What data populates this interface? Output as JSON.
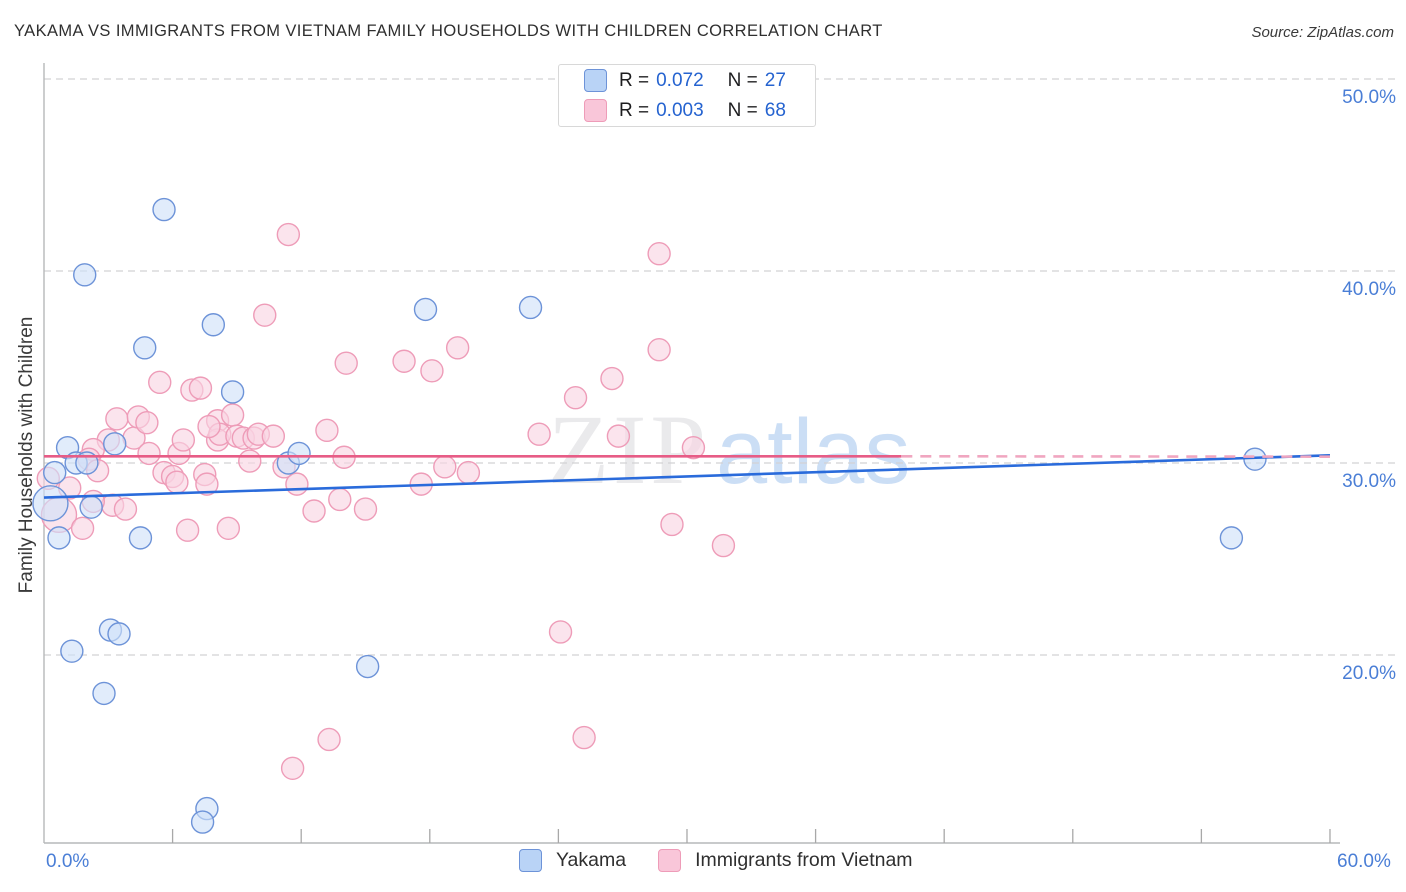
{
  "header": {
    "title": "YAKAMA VS IMMIGRANTS FROM VIETNAM FAMILY HOUSEHOLDS WITH CHILDREN CORRELATION CHART",
    "source": "Source: ZipAtlas.com"
  },
  "legend_box": {
    "rows": [
      {
        "series": "Yakama",
        "r_label": "R =",
        "r_value": "0.072",
        "n_label": "N =",
        "n_value": "27"
      },
      {
        "series": "Immigrants from Vietnam",
        "r_label": "R =",
        "r_value": "0.003",
        "n_label": "N =",
        "n_value": "68"
      }
    ]
  },
  "watermark": {
    "zip": "ZIP",
    "atlas": "atlas"
  },
  "axes": {
    "y_title": "Family Households with Children",
    "y_tick_labels": [
      "50.0%",
      "40.0%",
      "30.0%",
      "20.0%"
    ],
    "x_min_label": "0.0%",
    "x_max_label": "60.0%"
  },
  "bottom_legend": [
    {
      "label": "Yakama",
      "color": "#b9d3f6"
    },
    {
      "label": "Immigrants from Vietnam",
      "color": "#f9c6d9"
    }
  ],
  "colors": {
    "blue_fill": "#cfe0f8",
    "blue_stroke": "#6d93d8",
    "pink_fill": "#f9d4e2",
    "pink_stroke": "#ee9cb8",
    "blue_trend": "#2a6bdb",
    "pink_trend": "#e75c86",
    "pink_trend_dashed": "#f0a6c0",
    "grid": "#d2d2d4",
    "axis": "#b6b8ba",
    "tick": "#a8a8a8",
    "axis_label_blue": "#4a7ed6"
  },
  "chart_data": {
    "type": "scatter",
    "title": "Yakama vs Immigrants from Vietnam Family Households with Children",
    "xlabel": "",
    "ylabel": "Family Households with Children",
    "x_unit": "%",
    "y_unit": "%",
    "xlim": [
      0,
      60
    ],
    "ylim": [
      10,
      51
    ],
    "grid_y": [
      20,
      30,
      40,
      50
    ],
    "x_tick_positions": [
      6,
      12,
      18,
      24,
      30,
      36,
      42,
      48,
      54,
      60
    ],
    "legend_position": "bottom",
    "series": [
      {
        "name": "Yakama",
        "R": 0.072,
        "N": 27,
        "points": [
          [
            5.6,
            43.2
          ],
          [
            1.9,
            39.8
          ],
          [
            17.8,
            38.0
          ],
          [
            22.7,
            38.1
          ],
          [
            7.9,
            37.2
          ],
          [
            4.7,
            36.0
          ],
          [
            8.8,
            33.7
          ],
          [
            1.1,
            30.8
          ],
          [
            3.3,
            31.0
          ],
          [
            1.5,
            30.0
          ],
          [
            2.0,
            30.0
          ],
          [
            0.5,
            29.5
          ],
          [
            0.3,
            27.9,
            1
          ],
          [
            2.2,
            27.7
          ],
          [
            0.7,
            26.1
          ],
          [
            4.5,
            26.1
          ],
          [
            11.4,
            30.0
          ],
          [
            11.9,
            30.5
          ],
          [
            3.1,
            21.3
          ],
          [
            3.5,
            21.1
          ],
          [
            1.3,
            20.2
          ],
          [
            2.8,
            18.0
          ],
          [
            7.6,
            12.0
          ],
          [
            7.4,
            11.3
          ],
          [
            15.1,
            19.4
          ],
          [
            56.5,
            30.2
          ],
          [
            55.4,
            26.1
          ]
        ]
      },
      {
        "name": "Immigrants from Vietnam",
        "R": 0.003,
        "N": 68,
        "points": [
          [
            28.7,
            40.9
          ],
          [
            11.4,
            41.9
          ],
          [
            10.3,
            37.7
          ],
          [
            14.1,
            35.2
          ],
          [
            5.4,
            34.2
          ],
          [
            6.9,
            33.8
          ],
          [
            7.3,
            33.9
          ],
          [
            28.7,
            35.9
          ],
          [
            19.3,
            36.0
          ],
          [
            16.8,
            35.3
          ],
          [
            18.1,
            34.8
          ],
          [
            24.8,
            33.4
          ],
          [
            26.5,
            34.4
          ],
          [
            23.1,
            31.5
          ],
          [
            26.8,
            31.4
          ],
          [
            30.3,
            30.8
          ],
          [
            8.1,
            32.2
          ],
          [
            8.8,
            32.5
          ],
          [
            3.0,
            31.2
          ],
          [
            4.2,
            31.3
          ],
          [
            2.3,
            30.7
          ],
          [
            2.1,
            30.2
          ],
          [
            2.5,
            29.6
          ],
          [
            1.2,
            28.7
          ],
          [
            0.7,
            27.3,
            1
          ],
          [
            3.2,
            27.8
          ],
          [
            3.8,
            27.6
          ],
          [
            1.8,
            26.6
          ],
          [
            4.9,
            30.5
          ],
          [
            6.3,
            30.5
          ],
          [
            5.6,
            29.5
          ],
          [
            6.0,
            29.3
          ],
          [
            6.2,
            29.0
          ],
          [
            6.7,
            26.5
          ],
          [
            7.5,
            29.4
          ],
          [
            7.6,
            28.9
          ],
          [
            8.1,
            31.2
          ],
          [
            8.2,
            31.5
          ],
          [
            9.0,
            31.4
          ],
          [
            9.3,
            31.3
          ],
          [
            9.8,
            31.3
          ],
          [
            10.0,
            31.5
          ],
          [
            10.7,
            31.4
          ],
          [
            8.6,
            26.6
          ],
          [
            11.2,
            29.8
          ],
          [
            11.8,
            28.9
          ],
          [
            12.6,
            27.5
          ],
          [
            13.2,
            31.7
          ],
          [
            14.0,
            30.3
          ],
          [
            13.8,
            28.1
          ],
          [
            15.0,
            27.6
          ],
          [
            17.6,
            28.9
          ],
          [
            18.7,
            29.8
          ],
          [
            19.8,
            29.5
          ],
          [
            29.3,
            26.8
          ],
          [
            24.1,
            21.2
          ],
          [
            13.3,
            15.6
          ],
          [
            25.2,
            15.7
          ],
          [
            11.6,
            14.1
          ],
          [
            31.7,
            25.7
          ],
          [
            3.4,
            32.3
          ],
          [
            4.4,
            32.4
          ],
          [
            7.7,
            31.9
          ],
          [
            0.2,
            29.2
          ],
          [
            2.3,
            28.0
          ],
          [
            4.8,
            32.1
          ],
          [
            6.5,
            31.2
          ],
          [
            9.6,
            30.1
          ]
        ]
      }
    ],
    "trend_lines": [
      {
        "series": "Yakama",
        "style": "solid",
        "x_start": 0,
        "y_start": 28.2,
        "x_end": 60,
        "y_end": 30.4
      },
      {
        "series": "Immigrants from Vietnam",
        "style": "solid",
        "x_start": 0,
        "y_start": 30.35,
        "x_end": 40,
        "y_end": 30.35
      },
      {
        "series": "Immigrants from Vietnam",
        "style": "dashed",
        "x_start": 40,
        "y_start": 30.35,
        "x_end": 60,
        "y_end": 30.33
      }
    ]
  }
}
